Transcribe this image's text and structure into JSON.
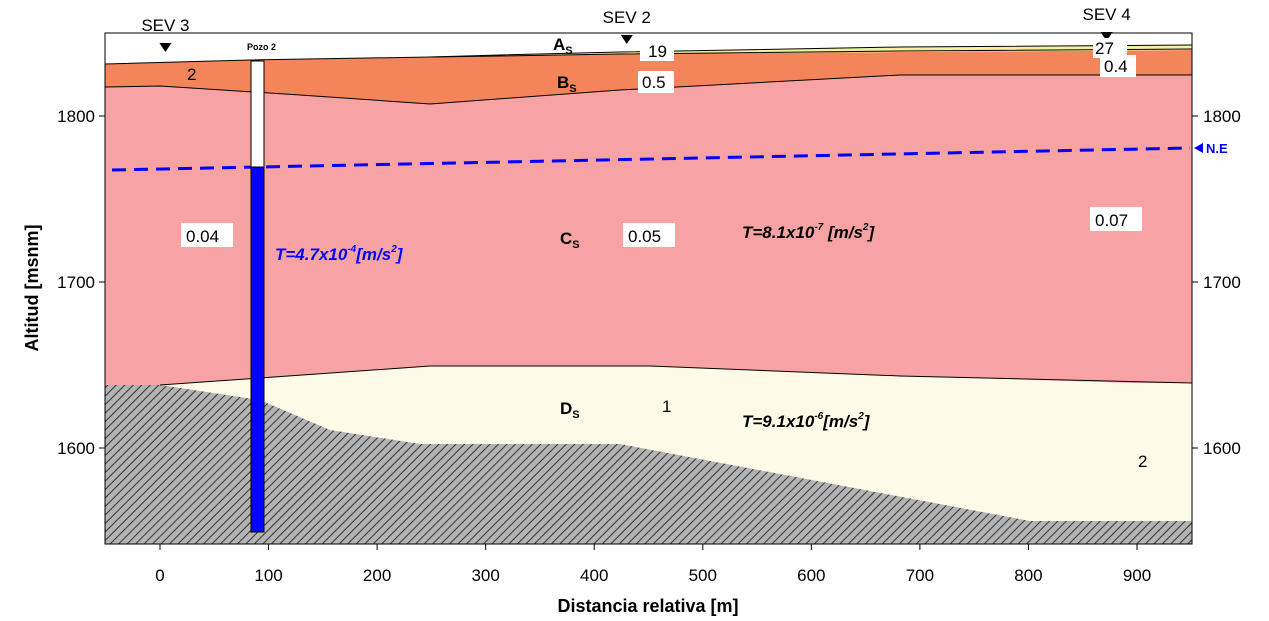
{
  "axes": {
    "x_title": "Distancia relativa [m]",
    "y_title": "Altitud [msnm]",
    "x_ticks": [
      "0",
      "100",
      "200",
      "300",
      "400",
      "500",
      "600",
      "700",
      "800",
      "900"
    ],
    "y_ticks": [
      "1600",
      "1700",
      "1800"
    ]
  },
  "sev": [
    {
      "label": "SEV 3",
      "x": 5
    },
    {
      "label": "SEV 2",
      "x": 430
    },
    {
      "label": "SEV 4",
      "x": 872
    }
  ],
  "well": {
    "label": "Pozo 2",
    "transmissivity": "T=4.7x10",
    "t_exp": "-4",
    "t_unit": "[m/s",
    "t_unit_exp": "2",
    "t_close": "]"
  },
  "water_table_label": "N.E",
  "layers": [
    {
      "name": "A",
      "sub": "S"
    },
    {
      "name": "B",
      "sub": "S"
    },
    {
      "name": "C",
      "sub": "S"
    },
    {
      "name": "D",
      "sub": "S"
    }
  ],
  "values": {
    "a_sev2": "19",
    "a_sev4": "27",
    "b_sev3": "2",
    "b_sev2": "0.5",
    "b_sev4": "0.4",
    "c_sev3": "0.04",
    "c_sev2": "0.05",
    "c_sev4": "0.07",
    "d_sev2": "1",
    "d_sev4": "2"
  },
  "transmissivity": {
    "c": {
      "base": "T=8.1x10",
      "exp": "-7",
      "unit": " [m/s",
      "unit_exp": "2",
      "close": "]"
    },
    "d": {
      "base": "T=9.1x10",
      "exp": "-6",
      "unit": "[m/s",
      "unit_exp": "2",
      "close": "]"
    }
  },
  "colors": {
    "layer_a": "#f5f0a0",
    "layer_b": "#f4845a",
    "layer_c": "#f8a3a3",
    "layer_d": "#fdfbe8",
    "basement": "#a9a9a9",
    "well_fill": "#0000ff",
    "water_table": "#0000ff"
  }
}
